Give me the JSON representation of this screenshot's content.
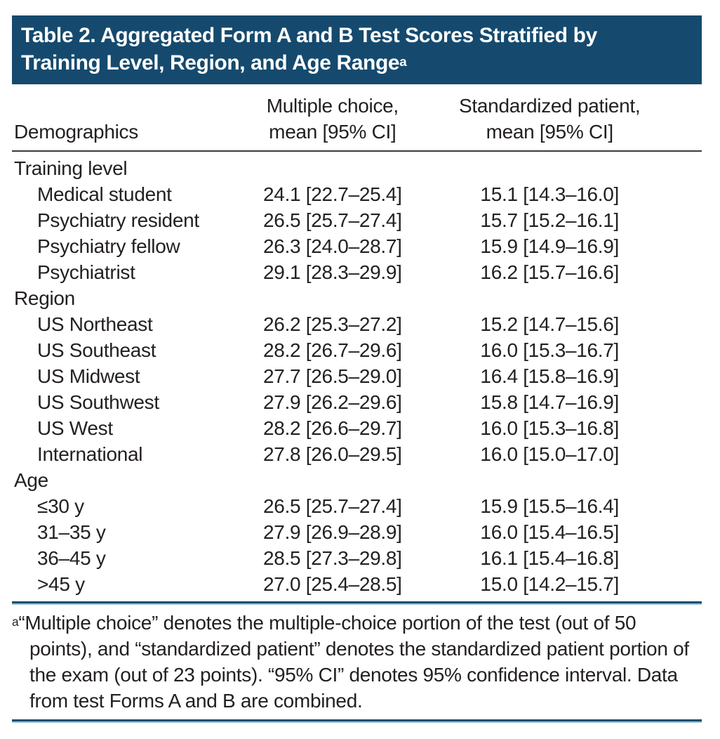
{
  "table": {
    "title_line1": "Table 2. Aggregated Form A and B Test Scores Stratified by",
    "title_line2": "Training Level, Region, and Age Range",
    "title_superscript": "a",
    "columns": {
      "demographics": "Demographics",
      "multiple_choice_line1": "Multiple choice,",
      "multiple_choice_line2": "mean [95% CI]",
      "standardized_patient_line1": "Standardized patient,",
      "standardized_patient_line2": "mean [95% CI]"
    },
    "sections": [
      {
        "label": "Training level",
        "rows": [
          {
            "label": "Medical student",
            "multiple_choice": "24.1 [22.7–25.4]",
            "standardized_patient": "15.1 [14.3–16.0]"
          },
          {
            "label": "Psychiatry resident",
            "multiple_choice": "26.5 [25.7–27.4]",
            "standardized_patient": "15.7 [15.2–16.1]"
          },
          {
            "label": "Psychiatry fellow",
            "multiple_choice": "26.3 [24.0–28.7]",
            "standardized_patient": "15.9 [14.9–16.9]"
          },
          {
            "label": "Psychiatrist",
            "multiple_choice": "29.1 [28.3–29.9]",
            "standardized_patient": "16.2 [15.7–16.6]"
          }
        ]
      },
      {
        "label": "Region",
        "rows": [
          {
            "label": "US Northeast",
            "multiple_choice": "26.2 [25.3–27.2]",
            "standardized_patient": "15.2 [14.7–15.6]"
          },
          {
            "label": "US Southeast",
            "multiple_choice": "28.2 [26.7–29.6]",
            "standardized_patient": "16.0 [15.3–16.7]"
          },
          {
            "label": "US Midwest",
            "multiple_choice": "27.7 [26.5–29.0]",
            "standardized_patient": "16.4 [15.8–16.9]"
          },
          {
            "label": "US Southwest",
            "multiple_choice": "27.9 [26.2–29.6]",
            "standardized_patient": "15.8 [14.7–16.9]"
          },
          {
            "label": "US West",
            "multiple_choice": "28.2 [26.6–29.7]",
            "standardized_patient": "16.0 [15.3–16.8]"
          },
          {
            "label": "International",
            "multiple_choice": "27.8 [26.0–29.5]",
            "standardized_patient": "16.0 [15.0–17.0]"
          }
        ]
      },
      {
        "label": "Age",
        "rows": [
          {
            "label": "≤30 y",
            "multiple_choice": "26.5 [25.7–27.4]",
            "standardized_patient": "15.9 [15.5–16.4]"
          },
          {
            "label": "31–35 y",
            "multiple_choice": "27.9 [26.9–28.9]",
            "standardized_patient": "16.0 [15.4–16.5]"
          },
          {
            "label": "36–45 y",
            "multiple_choice": "28.5 [27.3–29.8]",
            "standardized_patient": "16.1 [15.4–16.8]"
          },
          {
            "label": ">45 y",
            "multiple_choice": "27.0 [25.4–28.5]",
            "standardized_patient": "15.0 [14.2–15.7]"
          }
        ]
      }
    ],
    "footnote_marker": "a",
    "footnote_text": "“Multiple choice” denotes the multiple-choice portion of the test (out of 50 points), and “standardized patient” denotes the standardized patient portion of the exam (out of 23 points). “95% CI” denotes 95% confidence interval. Data from test Forms A and B are combined."
  },
  "colors": {
    "banner_blue": "#154a6e",
    "rule_blue_dark": "#15506f",
    "rule_blue_light": "#9cbfd3",
    "header_rule": "#3b3b3b",
    "text": "#231f20"
  }
}
